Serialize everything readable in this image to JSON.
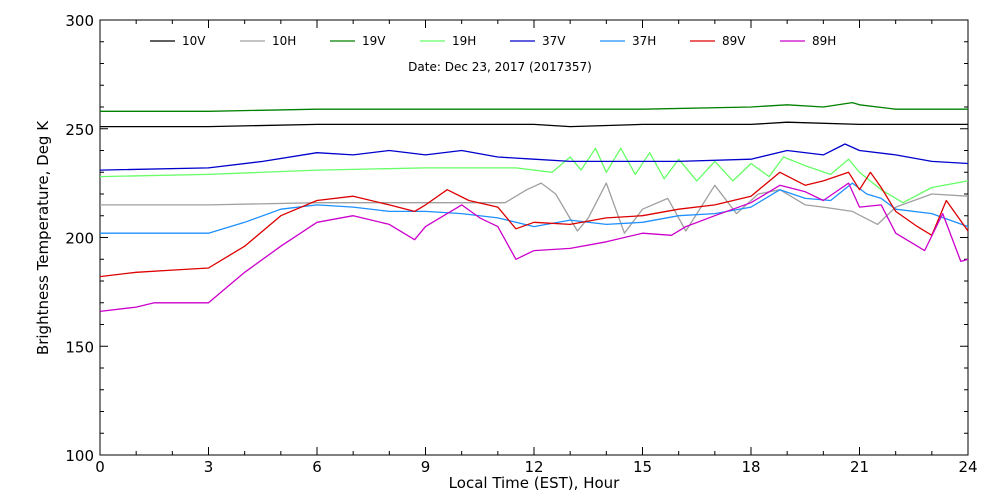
{
  "chart_data": {
    "type": "line",
    "title": "",
    "annotation": "Date: Dec 23, 2017 (2017357)",
    "xlabel": "Local Time (EST), Hour",
    "ylabel": "Brightness Temperature, Deg K",
    "xlim": [
      0,
      24
    ],
    "ylim": [
      100,
      300
    ],
    "xticks": [
      "0",
      "3",
      "6",
      "9",
      "12",
      "15",
      "18",
      "21",
      "24"
    ],
    "yticks": [
      "100",
      "150",
      "200",
      "250",
      "300"
    ],
    "grid": false,
    "legend_position": "top",
    "series": [
      {
        "name": "10V",
        "color": "#000000",
        "points": [
          [
            0,
            251
          ],
          [
            3,
            251
          ],
          [
            6,
            252
          ],
          [
            9,
            252
          ],
          [
            12,
            252
          ],
          [
            13,
            251
          ],
          [
            15,
            252
          ],
          [
            18,
            252
          ],
          [
            19,
            253
          ],
          [
            21,
            252
          ],
          [
            24,
            252
          ]
        ]
      },
      {
        "name": "10H",
        "color": "#a0a0a0",
        "points": [
          [
            0,
            215
          ],
          [
            3,
            215
          ],
          [
            6,
            216
          ],
          [
            9,
            216
          ],
          [
            11.2,
            216
          ],
          [
            11.8,
            222
          ],
          [
            12.2,
            225
          ],
          [
            12.6,
            220
          ],
          [
            13.2,
            203
          ],
          [
            13.5,
            209
          ],
          [
            14,
            225
          ],
          [
            14.5,
            202
          ],
          [
            15,
            213
          ],
          [
            15.7,
            218
          ],
          [
            16.2,
            203
          ],
          [
            17,
            224
          ],
          [
            17.6,
            211
          ],
          [
            18.2,
            220
          ],
          [
            18.8,
            222
          ],
          [
            19.5,
            215
          ],
          [
            20,
            214
          ],
          [
            20.8,
            212
          ],
          [
            21.5,
            206
          ],
          [
            22,
            214
          ],
          [
            23,
            220
          ],
          [
            24,
            219
          ]
        ]
      },
      {
        "name": "19V",
        "color": "#008000",
        "points": [
          [
            0,
            258
          ],
          [
            3,
            258
          ],
          [
            6,
            259
          ],
          [
            9,
            259
          ],
          [
            12,
            259
          ],
          [
            15,
            259
          ],
          [
            18,
            260
          ],
          [
            19,
            261
          ],
          [
            20,
            260
          ],
          [
            20.8,
            262
          ],
          [
            21,
            261
          ],
          [
            22,
            259
          ],
          [
            24,
            259
          ]
        ]
      },
      {
        "name": "19H",
        "color": "#66ff66",
        "points": [
          [
            0,
            228
          ],
          [
            3,
            229
          ],
          [
            6,
            231
          ],
          [
            9,
            232
          ],
          [
            11.5,
            232
          ],
          [
            12.5,
            230
          ],
          [
            13,
            237
          ],
          [
            13.3,
            231
          ],
          [
            13.7,
            241
          ],
          [
            14,
            230
          ],
          [
            14.4,
            241
          ],
          [
            14.8,
            229
          ],
          [
            15.2,
            239
          ],
          [
            15.6,
            227
          ],
          [
            16,
            236
          ],
          [
            16.5,
            226
          ],
          [
            17,
            235
          ],
          [
            17.5,
            226
          ],
          [
            18,
            234
          ],
          [
            18.5,
            228
          ],
          [
            18.9,
            237
          ],
          [
            19.5,
            233
          ],
          [
            20.2,
            229
          ],
          [
            20.7,
            236
          ],
          [
            21,
            230
          ],
          [
            21.6,
            222
          ],
          [
            22.2,
            216
          ],
          [
            23,
            223
          ],
          [
            24,
            226
          ]
        ]
      },
      {
        "name": "37V",
        "color": "#0000cc",
        "points": [
          [
            0,
            231
          ],
          [
            3,
            232
          ],
          [
            4.5,
            235
          ],
          [
            6,
            239
          ],
          [
            7,
            238
          ],
          [
            8,
            240
          ],
          [
            9,
            238
          ],
          [
            10,
            240
          ],
          [
            11,
            237
          ],
          [
            12,
            236
          ],
          [
            13,
            235
          ],
          [
            14,
            235
          ],
          [
            16,
            235
          ],
          [
            18,
            236
          ],
          [
            19,
            240
          ],
          [
            20,
            238
          ],
          [
            20.6,
            243
          ],
          [
            21,
            240
          ],
          [
            22,
            238
          ],
          [
            23,
            235
          ],
          [
            24,
            234
          ]
        ]
      },
      {
        "name": "37H",
        "color": "#1e90ff",
        "points": [
          [
            0,
            202
          ],
          [
            3,
            202
          ],
          [
            4,
            207
          ],
          [
            5,
            213
          ],
          [
            6,
            215
          ],
          [
            7,
            214
          ],
          [
            8,
            212
          ],
          [
            9,
            212
          ],
          [
            10,
            211
          ],
          [
            11,
            209
          ],
          [
            12,
            205
          ],
          [
            13,
            208
          ],
          [
            14,
            206
          ],
          [
            15,
            207
          ],
          [
            16,
            210
          ],
          [
            17,
            211
          ],
          [
            18,
            214
          ],
          [
            18.8,
            222
          ],
          [
            19.5,
            218
          ],
          [
            20.2,
            217
          ],
          [
            20.8,
            225
          ],
          [
            21.2,
            220
          ],
          [
            21.6,
            218
          ],
          [
            22,
            213
          ],
          [
            23,
            211
          ],
          [
            24,
            205
          ]
        ]
      },
      {
        "name": "89V",
        "color": "#dd0000",
        "points": [
          [
            0,
            182
          ],
          [
            1,
            184
          ],
          [
            2,
            185
          ],
          [
            3,
            186
          ],
          [
            4,
            196
          ],
          [
            5,
            210
          ],
          [
            6,
            217
          ],
          [
            7,
            219
          ],
          [
            8,
            215
          ],
          [
            8.7,
            212
          ],
          [
            9,
            215
          ],
          [
            9.6,
            222
          ],
          [
            10.2,
            217
          ],
          [
            11,
            214
          ],
          [
            11.5,
            204
          ],
          [
            12,
            207
          ],
          [
            13,
            206
          ],
          [
            14,
            209
          ],
          [
            15,
            210
          ],
          [
            16,
            213
          ],
          [
            17,
            215
          ],
          [
            18,
            219
          ],
          [
            18.8,
            230
          ],
          [
            19.5,
            224
          ],
          [
            20,
            226
          ],
          [
            20.7,
            230
          ],
          [
            21,
            222
          ],
          [
            21.3,
            230
          ],
          [
            21.6,
            223
          ],
          [
            22,
            212
          ],
          [
            22.6,
            205
          ],
          [
            23,
            201
          ],
          [
            23.4,
            217
          ],
          [
            24,
            203
          ]
        ]
      },
      {
        "name": "89H",
        "color": "#cc00cc",
        "points": [
          [
            0,
            166
          ],
          [
            1,
            168
          ],
          [
            1.5,
            170
          ],
          [
            3,
            170
          ],
          [
            4,
            184
          ],
          [
            5,
            196
          ],
          [
            6,
            207
          ],
          [
            7,
            210
          ],
          [
            8,
            206
          ],
          [
            8.7,
            199
          ],
          [
            9,
            205
          ],
          [
            10,
            215
          ],
          [
            10.5,
            209
          ],
          [
            11,
            205
          ],
          [
            11.5,
            190
          ],
          [
            12,
            194
          ],
          [
            13,
            195
          ],
          [
            14,
            198
          ],
          [
            15,
            202
          ],
          [
            15.8,
            201
          ],
          [
            16.2,
            205
          ],
          [
            17,
            210
          ],
          [
            18,
            216
          ],
          [
            18.8,
            224
          ],
          [
            19.5,
            221
          ],
          [
            20,
            217
          ],
          [
            20.7,
            225
          ],
          [
            21,
            214
          ],
          [
            21.6,
            215
          ],
          [
            22,
            202
          ],
          [
            22.8,
            194
          ],
          [
            23.3,
            211
          ],
          [
            23.8,
            189
          ],
          [
            24,
            190
          ]
        ]
      }
    ]
  }
}
